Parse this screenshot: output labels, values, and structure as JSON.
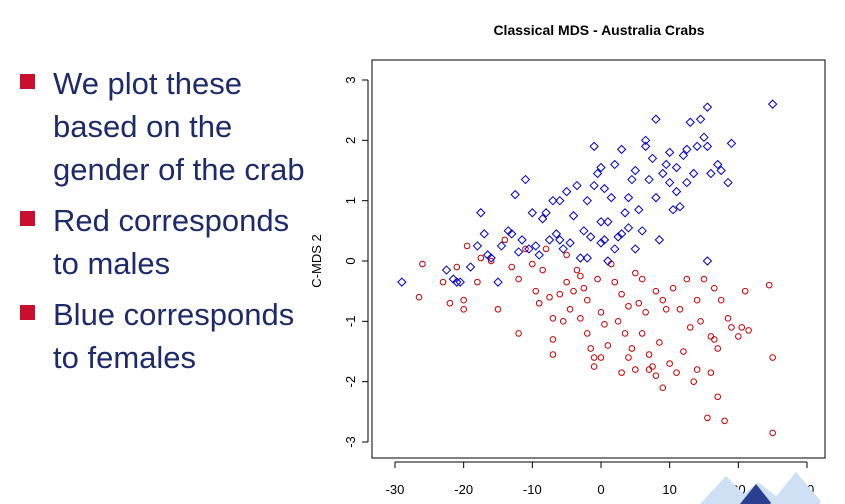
{
  "slide": {
    "bullets": [
      "We plot these based on the gender of the crab",
      "Red corresponds to males",
      "Blue corresponds to females"
    ],
    "bullet_color": "#c8102e",
    "text_color": "#1f2a6b"
  },
  "chart_data": {
    "type": "scatter",
    "title": "Classical MDS - Australia Crabs",
    "xlabel": "",
    "ylabel": "C-MDS 2",
    "xlim": [
      -30,
      30
    ],
    "ylim": [
      -3,
      3
    ],
    "x_ticks": [
      "-30",
      "-20",
      "-10",
      "0",
      "10",
      "20",
      "30"
    ],
    "y_ticks": [
      "-3",
      "-2",
      "-1",
      "0",
      "1",
      "2",
      "3"
    ],
    "series": [
      {
        "marker": "circle",
        "color": "#cc0000",
        "points": [
          [
            -26,
            -0.05
          ],
          [
            -26.5,
            -0.6
          ],
          [
            -23,
            -0.35
          ],
          [
            -22,
            -0.7
          ],
          [
            -21,
            -0.1
          ],
          [
            -20,
            -0.65
          ],
          [
            -20,
            -0.8
          ],
          [
            -19.5,
            0.25
          ],
          [
            -18,
            -0.35
          ],
          [
            -17.5,
            0.05
          ],
          [
            -16,
            0.0
          ],
          [
            -15,
            -0.8
          ],
          [
            -14,
            0.35
          ],
          [
            -13,
            -0.1
          ],
          [
            -12,
            -0.3
          ],
          [
            -12,
            -1.2
          ],
          [
            -11,
            0.2
          ],
          [
            -10,
            -0.05
          ],
          [
            -9.5,
            -0.5
          ],
          [
            -9,
            -0.7
          ],
          [
            -8.5,
            -0.15
          ],
          [
            -8,
            0.2
          ],
          [
            -7.5,
            -0.6
          ],
          [
            -7,
            -1.3
          ],
          [
            -7,
            -1.55
          ],
          [
            -7,
            -0.95
          ],
          [
            -6,
            -0.55
          ],
          [
            -5.5,
            -1.0
          ],
          [
            -5,
            0.1
          ],
          [
            -5,
            -0.35
          ],
          [
            -4.5,
            -0.8
          ],
          [
            -4,
            -0.5
          ],
          [
            -3.5,
            -0.15
          ],
          [
            -3,
            -0.25
          ],
          [
            -2.5,
            -0.45
          ],
          [
            -2,
            -0.65
          ],
          [
            -2,
            -1.2
          ],
          [
            -1.5,
            -1.45
          ],
          [
            -1,
            -1.6
          ],
          [
            -1,
            -1.75
          ],
          [
            -0.5,
            -0.3
          ],
          [
            0,
            -1.6
          ],
          [
            0,
            -0.85
          ],
          [
            0.5,
            -1.05
          ],
          [
            1,
            -1.4
          ],
          [
            1.5,
            -0.05
          ],
          [
            2,
            -0.35
          ],
          [
            2.5,
            -1.0
          ],
          [
            3,
            -0.55
          ],
          [
            3,
            -1.85
          ],
          [
            3.5,
            -1.2
          ],
          [
            4,
            -0.75
          ],
          [
            4.5,
            -1.45
          ],
          [
            5,
            -1.8
          ],
          [
            5,
            -0.2
          ],
          [
            5.5,
            -0.7
          ],
          [
            6,
            -1.2
          ],
          [
            6,
            -0.3
          ],
          [
            6.5,
            -0.85
          ],
          [
            7,
            -1.55
          ],
          [
            7,
            -1.8
          ],
          [
            7.5,
            -1.75
          ],
          [
            8,
            -0.5
          ],
          [
            8,
            -1.9
          ],
          [
            8.5,
            -1.35
          ],
          [
            9,
            -0.65
          ],
          [
            9.5,
            -0.8
          ],
          [
            9,
            -2.1
          ],
          [
            10,
            -1.7
          ],
          [
            10.5,
            -0.45
          ],
          [
            11,
            -1.85
          ],
          [
            11.5,
            -0.8
          ],
          [
            12,
            -1.5
          ],
          [
            12.5,
            -0.3
          ],
          [
            13,
            -1.1
          ],
          [
            13.5,
            -2.0
          ],
          [
            14,
            -0.65
          ],
          [
            14.5,
            -1.0
          ],
          [
            15,
            -0.3
          ],
          [
            15.5,
            -2.6
          ],
          [
            16,
            -1.85
          ],
          [
            16.5,
            -0.45
          ],
          [
            17,
            -1.45
          ],
          [
            17.5,
            -0.65
          ],
          [
            17,
            -2.25
          ],
          [
            18,
            -2.65
          ],
          [
            18.5,
            -0.95
          ],
          [
            19,
            -1.1
          ],
          [
            16,
            -1.25
          ],
          [
            20,
            -1.25
          ],
          [
            20.5,
            -1.1
          ],
          [
            21,
            -0.5
          ],
          [
            21.5,
            -1.15
          ],
          [
            16.5,
            -1.3
          ],
          [
            24.5,
            -0.4
          ],
          [
            25,
            -1.6
          ],
          [
            25,
            -2.85
          ],
          [
            14,
            -1.8
          ],
          [
            4,
            -1.6
          ],
          [
            -3,
            -0.95
          ]
        ]
      },
      {
        "marker": "diamond",
        "color": "#0000cc",
        "points": [
          [
            -29,
            -0.35
          ],
          [
            -22.5,
            -0.15
          ],
          [
            -21.5,
            -0.3
          ],
          [
            -21,
            -0.35
          ],
          [
            -19,
            -0.1
          ],
          [
            -18,
            0.25
          ],
          [
            -17.5,
            0.8
          ],
          [
            -17,
            0.45
          ],
          [
            -16,
            0.05
          ],
          [
            -15,
            -0.35
          ],
          [
            -14.5,
            0.25
          ],
          [
            -13.5,
            0.5
          ],
          [
            -13,
            0.45
          ],
          [
            -12.5,
            1.1
          ],
          [
            -12,
            0.15
          ],
          [
            -11.5,
            0.35
          ],
          [
            -11,
            1.35
          ],
          [
            -10.5,
            0.2
          ],
          [
            -10,
            0.8
          ],
          [
            -9.5,
            0.25
          ],
          [
            -9,
            0.1
          ],
          [
            -8.5,
            0.7
          ],
          [
            -8,
            0.8
          ],
          [
            -7.5,
            0.35
          ],
          [
            -7,
            1.0
          ],
          [
            -6.5,
            0.45
          ],
          [
            -6,
            1.0
          ],
          [
            -5.5,
            0.2
          ],
          [
            -5,
            1.15
          ],
          [
            -4.5,
            0.3
          ],
          [
            -4,
            0.75
          ],
          [
            -3.5,
            1.25
          ],
          [
            -3,
            0.05
          ],
          [
            -2.5,
            0.5
          ],
          [
            -2,
            1.0
          ],
          [
            -1.5,
            0.4
          ],
          [
            -1,
            1.9
          ],
          [
            -1,
            1.25
          ],
          [
            -0.5,
            1.45
          ],
          [
            0,
            1.55
          ],
          [
            0,
            0.65
          ],
          [
            0.5,
            0.35
          ],
          [
            0.5,
            1.2
          ],
          [
            1,
            0.0
          ],
          [
            1,
            0.65
          ],
          [
            1.5,
            1.05
          ],
          [
            2,
            1.6
          ],
          [
            2.5,
            0.4
          ],
          [
            3,
            1.85
          ],
          [
            3,
            0.45
          ],
          [
            3.5,
            0.8
          ],
          [
            4,
            0.55
          ],
          [
            4,
            1.05
          ],
          [
            4.5,
            1.35
          ],
          [
            5,
            0.2
          ],
          [
            5,
            1.5
          ],
          [
            5.5,
            0.85
          ],
          [
            6,
            0.5
          ],
          [
            6.5,
            1.9
          ],
          [
            6.5,
            2.0
          ],
          [
            7,
            1.35
          ],
          [
            7.5,
            1.7
          ],
          [
            8,
            2.35
          ],
          [
            8,
            1.05
          ],
          [
            8.5,
            0.35
          ],
          [
            9,
            1.45
          ],
          [
            9.5,
            1.6
          ],
          [
            10,
            1.3
          ],
          [
            10,
            1.8
          ],
          [
            10.5,
            0.85
          ],
          [
            11,
            1.15
          ],
          [
            11.5,
            0.9
          ],
          [
            12,
            1.75
          ],
          [
            12.5,
            1.3
          ],
          [
            13,
            2.3
          ],
          [
            13.5,
            1.45
          ],
          [
            14,
            1.9
          ],
          [
            14.5,
            2.35
          ],
          [
            15,
            2.05
          ],
          [
            15.5,
            2.55
          ],
          [
            15.5,
            1.9
          ],
          [
            16,
            1.45
          ],
          [
            17,
            1.6
          ],
          [
            17.5,
            1.5
          ],
          [
            18.5,
            1.3
          ],
          [
            19,
            1.95
          ],
          [
            15.5,
            0.0
          ],
          [
            25,
            2.6
          ],
          [
            -20.5,
            -0.35
          ],
          [
            -16.5,
            0.1
          ],
          [
            -6,
            0.35
          ],
          [
            -2,
            0.05
          ],
          [
            2,
            0.2
          ],
          [
            11,
            1.55
          ],
          [
            12.5,
            1.85
          ],
          [
            0,
            0.3
          ]
        ]
      }
    ]
  }
}
